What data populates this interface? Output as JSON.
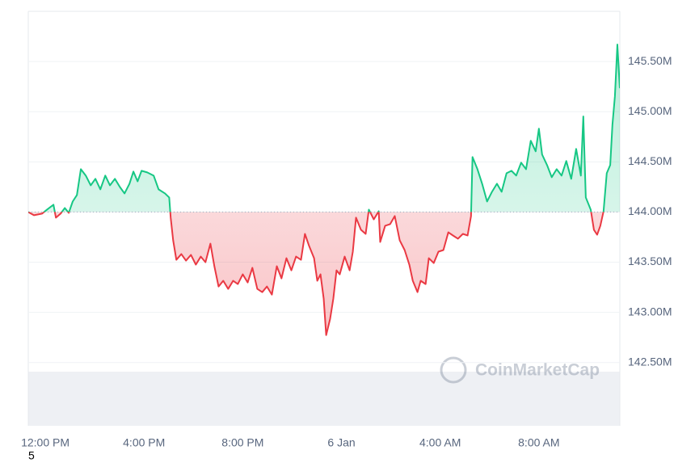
{
  "chart_data": {
    "type": "line",
    "x": [
      -0.69,
      -0.46,
      -0.13,
      0.07,
      0.33,
      0.43,
      0.62,
      0.79,
      0.95,
      1.11,
      1.28,
      1.44,
      1.64,
      1.84,
      2.03,
      2.23,
      2.43,
      2.62,
      2.82,
      3.02,
      3.21,
      3.41,
      3.57,
      3.74,
      3.9,
      4.13,
      4.39,
      4.59,
      4.85,
      5.02,
      5.08,
      5.18,
      5.31,
      5.51,
      5.7,
      5.9,
      6.1,
      6.3,
      6.49,
      6.69,
      6.85,
      7.02,
      7.21,
      7.41,
      7.61,
      7.8,
      8.0,
      8.2,
      8.39,
      8.59,
      8.79,
      8.98,
      9.18,
      9.38,
      9.57,
      9.77,
      9.97,
      10.16,
      10.36,
      10.52,
      10.69,
      10.89,
      11.02,
      11.15,
      11.28,
      11.38,
      11.54,
      11.67,
      11.8,
      11.93,
      12.13,
      12.33,
      12.46,
      12.59,
      12.79,
      12.98,
      13.11,
      13.31,
      13.51,
      13.57,
      13.77,
      13.97,
      14.16,
      14.36,
      14.56,
      14.75,
      14.89,
      15.08,
      15.21,
      15.41,
      15.54,
      15.74,
      15.93,
      16.13,
      16.33,
      16.52,
      16.72,
      16.92,
      17.11,
      17.25,
      17.31,
      17.51,
      17.7,
      17.9,
      18.1,
      18.3,
      18.49,
      18.69,
      18.89,
      19.08,
      19.28,
      19.48,
      19.67,
      19.87,
      20.0,
      20.13,
      20.33,
      20.52,
      20.72,
      20.92,
      21.11,
      21.31,
      21.51,
      21.7,
      21.8,
      21.9,
      22.1,
      22.23,
      22.36,
      22.49,
      22.62,
      22.75,
      22.89,
      22.98,
      23.08,
      23.18,
      23.28
    ],
    "values": [
      144.0,
      143.968,
      143.984,
      144.024,
      144.073,
      143.944,
      143.984,
      144.04,
      143.992,
      144.105,
      144.169,
      144.427,
      144.363,
      144.266,
      144.331,
      144.226,
      144.363,
      144.266,
      144.331,
      144.25,
      144.185,
      144.282,
      144.403,
      144.306,
      144.411,
      144.395,
      144.363,
      144.226,
      144.185,
      144.145,
      143.944,
      143.718,
      143.524,
      143.581,
      143.516,
      143.573,
      143.476,
      143.556,
      143.5,
      143.685,
      143.46,
      143.258,
      143.315,
      143.234,
      143.315,
      143.282,
      143.379,
      143.298,
      143.444,
      143.234,
      143.202,
      143.258,
      143.177,
      143.46,
      143.339,
      143.54,
      143.419,
      143.556,
      143.524,
      143.782,
      143.661,
      143.54,
      143.315,
      143.379,
      143.137,
      142.774,
      142.935,
      143.137,
      143.419,
      143.379,
      143.556,
      143.419,
      143.605,
      143.944,
      143.823,
      143.782,
      144.024,
      143.927,
      144.008,
      143.702,
      143.863,
      143.879,
      143.96,
      143.718,
      143.621,
      143.476,
      143.315,
      143.202,
      143.315,
      143.282,
      143.54,
      143.492,
      143.605,
      143.621,
      143.798,
      143.766,
      143.734,
      143.782,
      143.766,
      143.96,
      144.548,
      144.427,
      144.282,
      144.105,
      144.202,
      144.282,
      144.202,
      144.387,
      144.411,
      144.363,
      144.492,
      144.427,
      144.71,
      144.605,
      144.831,
      144.573,
      144.468,
      144.347,
      144.427,
      144.363,
      144.508,
      144.331,
      144.629,
      144.363,
      144.952,
      144.145,
      144.024,
      143.823,
      143.774,
      143.863,
      144.008,
      144.387,
      144.468,
      144.871,
      145.153,
      145.669,
      145.234
    ],
    "baseline": 144,
    "up_color": "#16c784",
    "down_color": "#ea3943",
    "xlim": [
      -0.69,
      23.28
    ],
    "xticks": [
      {
        "value": 0,
        "label": "12:00 PM"
      },
      {
        "value": 4,
        "label": "4:00 PM"
      },
      {
        "value": 8,
        "label": "8:00 PM"
      },
      {
        "value": 12,
        "label": "6 Jan"
      },
      {
        "value": 16,
        "label": "4:00 AM"
      },
      {
        "value": 20,
        "label": "8:00 AM"
      }
    ],
    "ylim": [
      141.87,
      146.0
    ],
    "yticks": [
      {
        "value": 142.5,
        "label": "142.50M"
      },
      {
        "value": 143,
        "label": "143.00M"
      },
      {
        "value": 143.5,
        "label": "143.50M"
      },
      {
        "value": 144,
        "label": "144.00M"
      },
      {
        "value": 144.5,
        "label": "144.50M"
      },
      {
        "value": 145,
        "label": "145.00M"
      },
      {
        "value": 145.5,
        "label": "145.50M"
      }
    ],
    "grid": true,
    "watermark": "CoinMarketCap",
    "footnote": "5"
  }
}
